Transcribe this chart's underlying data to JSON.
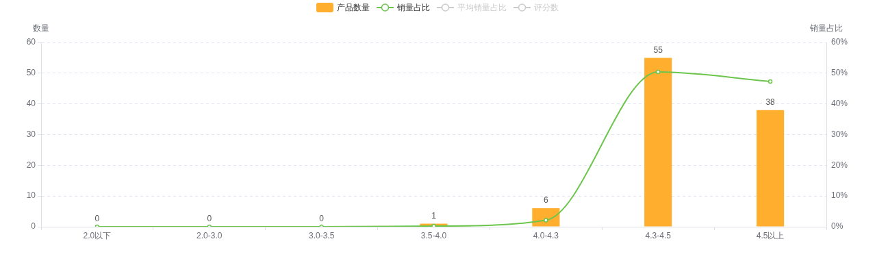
{
  "chart_data": {
    "type": "bar",
    "categories": [
      "2.0以下",
      "2.0-3.0",
      "3.0-3.5",
      "3.5-4.0",
      "4.0-4.3",
      "4.3-4.5",
      "4.5以上"
    ],
    "ylabel": "数量",
    "y2label": "销量占比",
    "series": [
      {
        "name": "产品数量",
        "color": "#ffae2e",
        "values": [
          0,
          0,
          0,
          1,
          6,
          55,
          38
        ],
        "value_labels": [
          "0",
          "0",
          "0",
          "1",
          "6",
          "55",
          "38"
        ]
      },
      {
        "name": "销量占比",
        "type": "line",
        "axis": "y2",
        "color": "#6cc54c",
        "values": [
          0,
          0,
          0,
          0.2,
          2.1,
          50.4,
          47.3
        ]
      },
      {
        "name": "平均销量占比",
        "type": "line",
        "axis": "y2",
        "color": "#cccccc",
        "values": [
          null,
          null,
          null,
          null,
          null,
          null,
          null
        ]
      },
      {
        "name": "评分数",
        "type": "line",
        "color": "#cccccc",
        "values": [
          null,
          null,
          null,
          null,
          null,
          null,
          null
        ]
      }
    ],
    "ylim": [
      0,
      60
    ],
    "yticks": [
      0,
      10,
      20,
      30,
      40,
      50,
      60
    ],
    "y2lim": [
      0,
      60
    ],
    "y2ticks": [
      {
        "value": 0,
        "label": "0%"
      },
      {
        "value": 10,
        "label": "10%"
      },
      {
        "value": 20,
        "label": "20%"
      },
      {
        "value": 30,
        "label": "30%"
      },
      {
        "value": 40,
        "label": "40%"
      },
      {
        "value": 50,
        "label": "50%"
      },
      {
        "value": 60,
        "label": "60%"
      }
    ],
    "grid": "y",
    "legend": "top",
    "marker": "circle"
  }
}
